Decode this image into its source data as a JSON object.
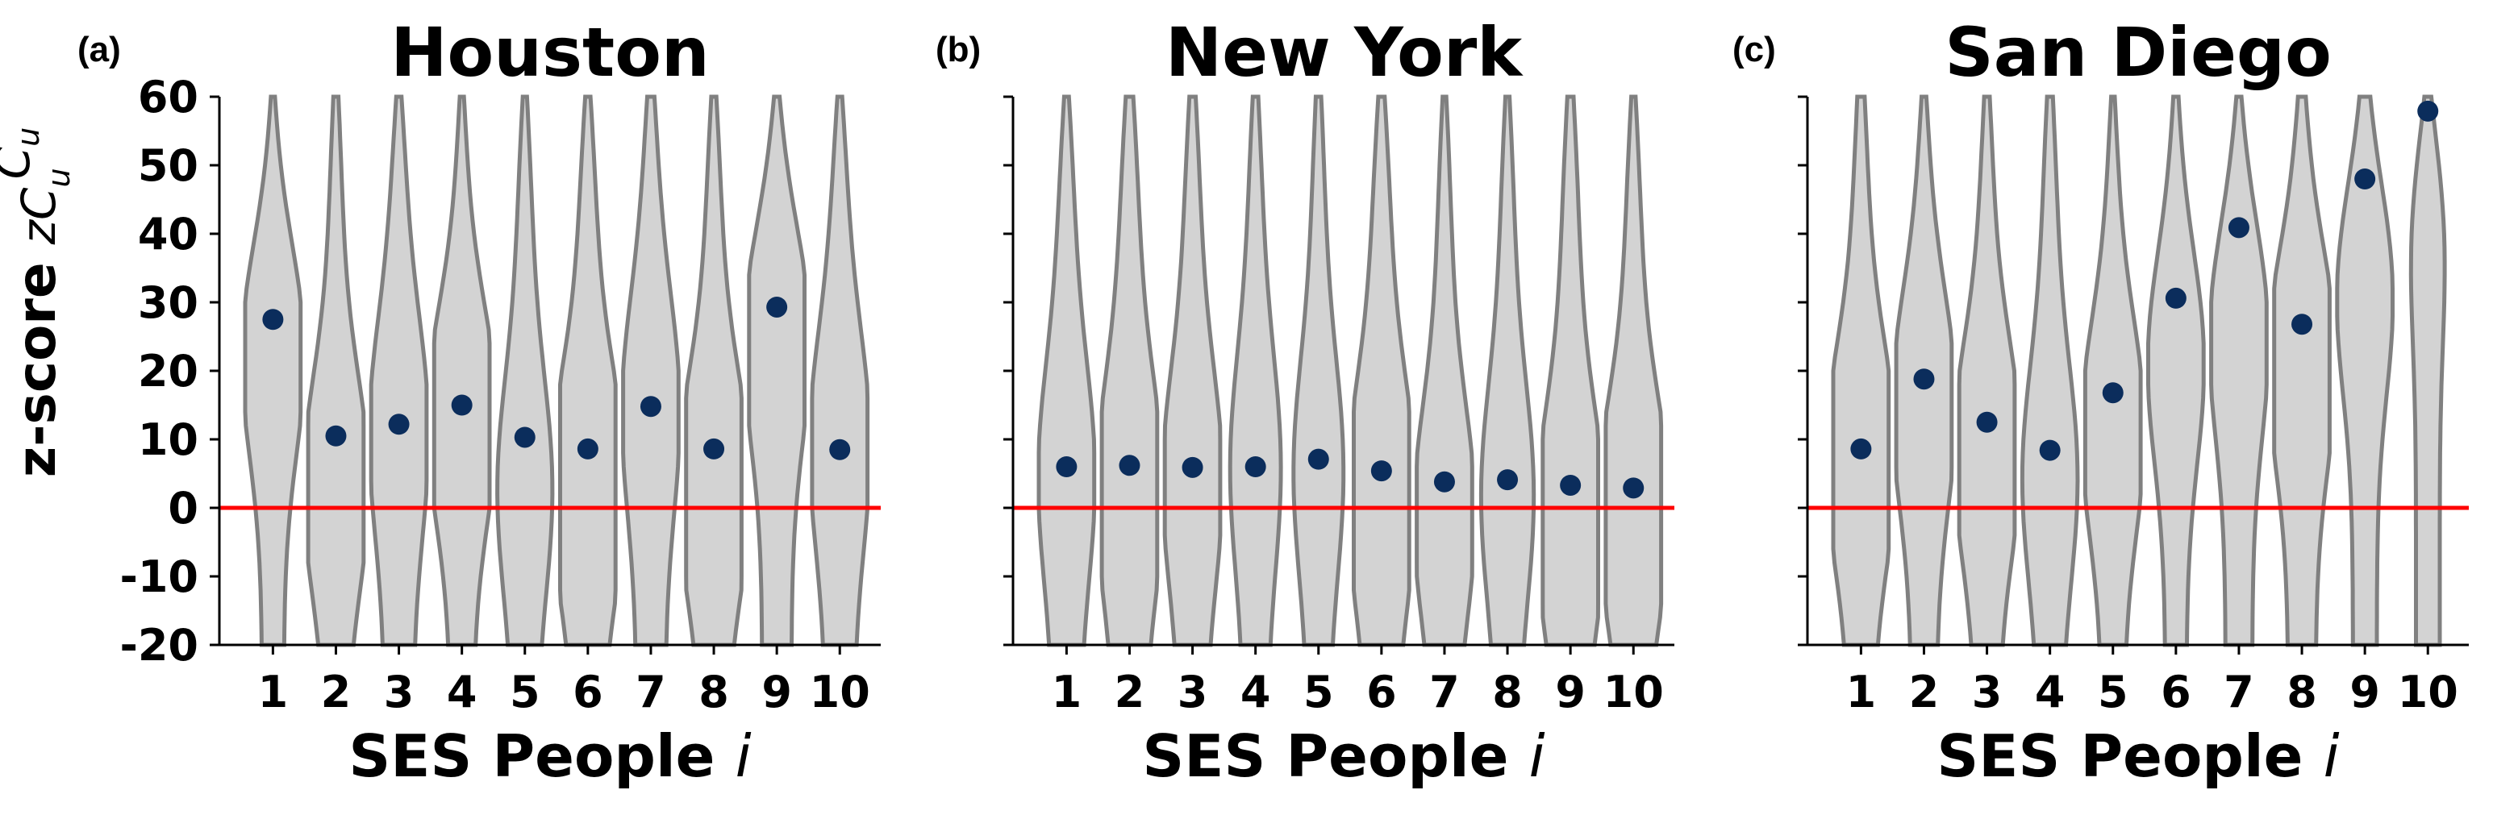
{
  "colors": {
    "violin_fill": "#d3d3d3",
    "violin_edge": "#808080",
    "point": "#0b2d5c",
    "zero_line": "#ff0000",
    "axis": "#000000"
  },
  "y_axis": {
    "label_main": "z-score",
    "label_symbol": "zC",
    "label_sub": "u",
    "label_sup": "C",
    "label_sup_sub": "u",
    "ticks": [
      "60",
      "50",
      "40",
      "30",
      "20",
      "10",
      "0",
      "-10",
      "-20"
    ]
  },
  "x_axis": {
    "label": "SES People",
    "label_var": "i",
    "ticks": [
      "1",
      "2",
      "3",
      "4",
      "5",
      "6",
      "7",
      "8",
      "9",
      "10"
    ]
  },
  "chart_data": [
    {
      "type": "violin-scatter",
      "panel_label": "(a)",
      "title": "Houston",
      "xlabel": "SES People i",
      "ylabel": "z-score zC_u^{C_u}",
      "categories": [
        1,
        2,
        3,
        4,
        5,
        6,
        7,
        8,
        9,
        10
      ],
      "values": [
        27.5,
        10.5,
        12.2,
        15.0,
        10.3,
        8.6,
        14.8,
        8.6,
        29.3,
        8.5
      ],
      "reference_line": 0,
      "ylim": [
        -20,
        60
      ],
      "grid": false
    },
    {
      "type": "violin-scatter",
      "panel_label": "(b)",
      "title": "New York",
      "xlabel": "SES People i",
      "categories": [
        1,
        2,
        3,
        4,
        5,
        6,
        7,
        8,
        9,
        10
      ],
      "values": [
        6.0,
        6.2,
        5.9,
        6.0,
        7.1,
        5.4,
        3.8,
        4.1,
        3.3,
        2.9
      ],
      "reference_line": 0,
      "ylim": [
        -20,
        60
      ],
      "grid": false
    },
    {
      "type": "violin-scatter",
      "panel_label": "(c)",
      "title": "San Diego",
      "xlabel": "SES People i",
      "categories": [
        1,
        2,
        3,
        4,
        5,
        6,
        7,
        8,
        9,
        10
      ],
      "values": [
        8.6,
        18.8,
        12.5,
        8.4,
        16.8,
        30.6,
        40.9,
        26.8,
        48.0,
        57.9
      ],
      "reference_line": 0,
      "ylim": [
        -20,
        60
      ],
      "grid": false
    }
  ]
}
